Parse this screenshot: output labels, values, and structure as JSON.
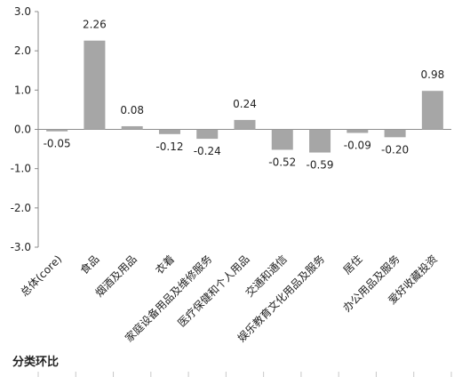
{
  "chart_data": {
    "type": "bar",
    "categories": [
      "总体(core)",
      "食品",
      "烟酒及用品",
      "衣着",
      "家庭设备用品及维修服务",
      "医疗保健和个人用品",
      "交通和通信",
      "娱乐教育文化用品及服务",
      "居住",
      "办公用品及服务",
      "爱好收藏投资"
    ],
    "values": [
      -0.05,
      2.26,
      0.08,
      -0.12,
      -0.24,
      0.24,
      -0.52,
      -0.59,
      -0.09,
      -0.2,
      0.98
    ],
    "value_labels": [
      "-0.05",
      "2.26",
      "0.08",
      "-0.12",
      "-0.24",
      "0.24",
      "-0.52",
      "-0.59",
      "-0.09",
      "-0.20",
      "0.98"
    ],
    "ylim": [
      -3.0,
      3.0
    ],
    "yticks": [
      "3.0",
      "2.0",
      "1.0",
      "0.0",
      "-1.0",
      "-2.0",
      "-3.0"
    ],
    "ytick_values": [
      3,
      2,
      1,
      0,
      -1,
      -2,
      -3
    ],
    "grid": false,
    "legend": "none",
    "bar_color": "#a6a6a6",
    "axis_color": "#8c8c8c",
    "xlabel": "",
    "ylabel": "",
    "title": ""
  },
  "footer": {
    "label": "分类环比"
  }
}
